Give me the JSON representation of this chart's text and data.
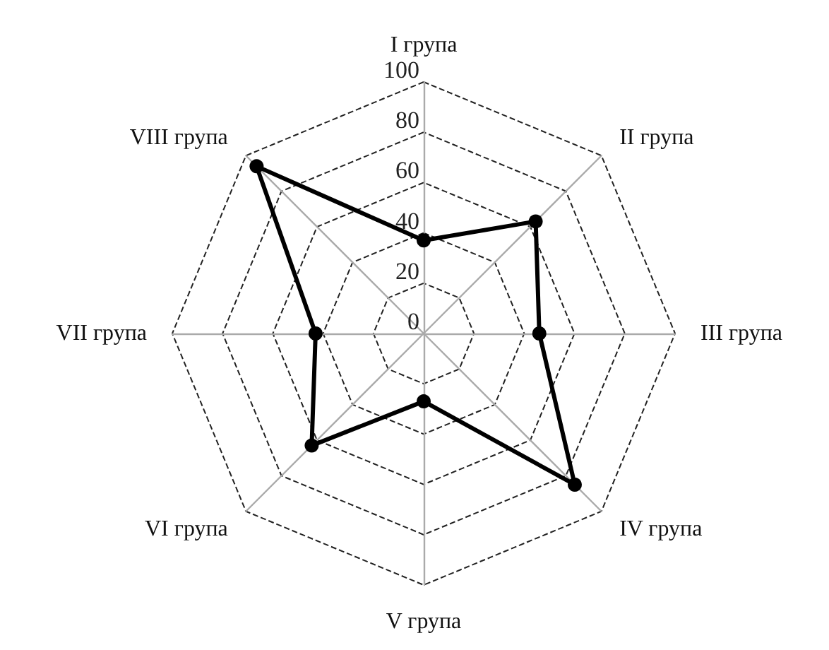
{
  "chart_data": {
    "type": "radar",
    "categories": [
      "I група",
      "II група",
      "III група",
      "IV група",
      "V група",
      "VI група",
      "VII група",
      "VIII група"
    ],
    "series": [
      {
        "color": "#000000",
        "values": [
          37,
          63,
          46,
          85,
          27,
          63,
          43,
          94
        ]
      }
    ],
    "ylim": [
      0,
      100
    ],
    "yticks": [
      0,
      20,
      40,
      60,
      80,
      100
    ],
    "marker": "circle",
    "line_style": "solid",
    "grid": true
  }
}
